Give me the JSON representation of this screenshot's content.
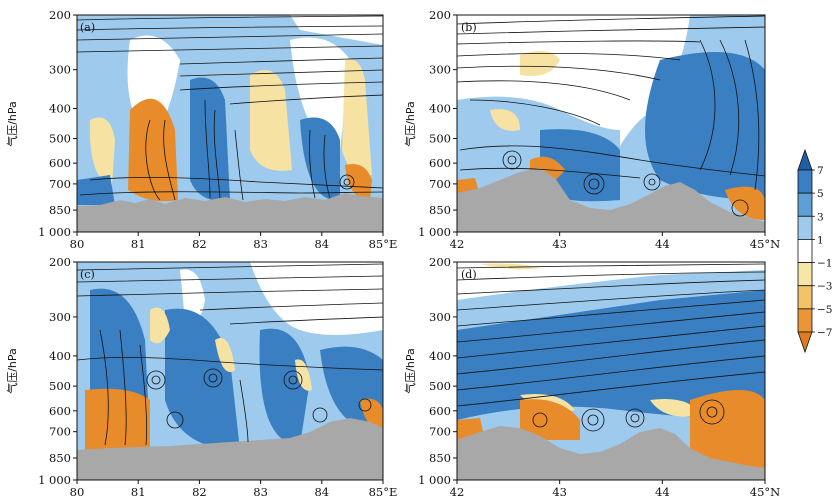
{
  "chart_data": [
    {
      "type": "streamline-contour",
      "panel_label": "(a)",
      "ylabel": "气压/hPa",
      "x_ticks": [
        "80",
        "81",
        "82",
        "83",
        "84",
        "85°E"
      ],
      "x_values": [
        80,
        81,
        82,
        83,
        84,
        85
      ],
      "xlim": [
        80,
        85
      ],
      "y_ticks": [
        "200",
        "300",
        "400",
        "500",
        "600",
        "700",
        "850",
        "1 000"
      ],
      "y_values": [
        200,
        300,
        400,
        500,
        600,
        700,
        850,
        1000
      ],
      "ylim": [
        1000,
        200
      ],
      "y_scale": "log",
      "terrain_surface_pressure": [
        [
          80,
          830
        ],
        [
          80.5,
          820
        ],
        [
          81,
          800
        ],
        [
          81.5,
          790
        ],
        [
          82,
          810
        ],
        [
          82.5,
          800
        ],
        [
          83,
          820
        ],
        [
          83.5,
          810
        ],
        [
          84,
          780
        ],
        [
          84.5,
          760
        ],
        [
          85,
          810
        ]
      ]
    },
    {
      "type": "streamline-contour",
      "panel_label": "(b)",
      "ylabel": "气压/hPa",
      "x_ticks": [
        "42",
        "43",
        "44",
        "45°N"
      ],
      "x_values": [
        42,
        43,
        44,
        45
      ],
      "xlim": [
        42,
        45
      ],
      "y_ticks": [
        "200",
        "300",
        "400",
        "500",
        "600",
        "700",
        "850",
        "1 000"
      ],
      "y_values": [
        200,
        300,
        400,
        500,
        600,
        700,
        850,
        1000
      ],
      "ylim": [
        1000,
        200
      ],
      "y_scale": "log",
      "terrain_surface_pressure": [
        [
          42,
          750
        ],
        [
          42.3,
          720
        ],
        [
          42.6,
          660
        ],
        [
          42.9,
          730
        ],
        [
          43.2,
          840
        ],
        [
          43.5,
          850
        ],
        [
          43.8,
          790
        ],
        [
          44.1,
          700
        ],
        [
          44.4,
          730
        ],
        [
          44.7,
          850
        ],
        [
          45,
          880
        ]
      ]
    },
    {
      "type": "streamline-contour",
      "panel_label": "(c)",
      "ylabel": "气压/hPa",
      "x_ticks": [
        "80",
        "81",
        "82",
        "83",
        "84",
        "85°E"
      ],
      "x_values": [
        80,
        81,
        82,
        83,
        84,
        85
      ],
      "xlim": [
        80,
        85
      ],
      "y_ticks": [
        "200",
        "300",
        "400",
        "500",
        "600",
        "700",
        "850",
        "1 000"
      ],
      "y_values": [
        200,
        300,
        400,
        500,
        600,
        700,
        850,
        1000
      ],
      "ylim": [
        1000,
        200
      ],
      "y_scale": "log",
      "terrain_surface_pressure": [
        [
          80,
          830
        ],
        [
          80.5,
          820
        ],
        [
          81,
          810
        ],
        [
          81.5,
          800
        ],
        [
          82,
          790
        ],
        [
          82.5,
          780
        ],
        [
          83,
          770
        ],
        [
          83.5,
          780
        ],
        [
          84,
          700
        ],
        [
          84.5,
          660
        ],
        [
          85,
          700
        ]
      ]
    },
    {
      "type": "streamline-contour",
      "panel_label": "(d)",
      "ylabel": "气压/hPa",
      "x_ticks": [
        "42",
        "43",
        "44",
        "45°N"
      ],
      "x_values": [
        42,
        43,
        44,
        45
      ],
      "xlim": [
        42,
        45
      ],
      "y_ticks": [
        "200",
        "300",
        "400",
        "500",
        "600",
        "700",
        "850",
        "1 000"
      ],
      "y_values": [
        200,
        300,
        400,
        500,
        600,
        700,
        850,
        1000
      ],
      "ylim": [
        1000,
        200
      ],
      "y_scale": "log",
      "terrain_surface_pressure": [
        [
          42,
          740
        ],
        [
          42.4,
          700
        ],
        [
          42.7,
          740
        ],
        [
          43,
          830
        ],
        [
          43.4,
          860
        ],
        [
          43.8,
          780
        ],
        [
          44,
          740
        ],
        [
          44.3,
          800
        ],
        [
          44.6,
          840
        ],
        [
          45,
          880
        ]
      ]
    }
  ],
  "colorbar": {
    "labels": [
      "7",
      "5",
      "3",
      "1",
      "−1",
      "−3",
      "−5",
      "−7"
    ],
    "values": [
      7,
      5,
      3,
      1,
      -1,
      -3,
      -5,
      -7
    ],
    "colors": [
      "#1f5fa8",
      "#3a7fc2",
      "#5e9fd6",
      "#9ecbed",
      "#ffffff",
      "#f7e7a6",
      "#f3c26a",
      "#ea9536",
      "#e07b1f"
    ],
    "placement": "right"
  },
  "colors": {
    "positive_strong": "#3a7fc2",
    "positive_light": "#9ecbed",
    "negative_light": "#f6e3a4",
    "negative_strong": "#e88b2a",
    "terrain": "#a8a8a8",
    "streamline": "#111111"
  }
}
